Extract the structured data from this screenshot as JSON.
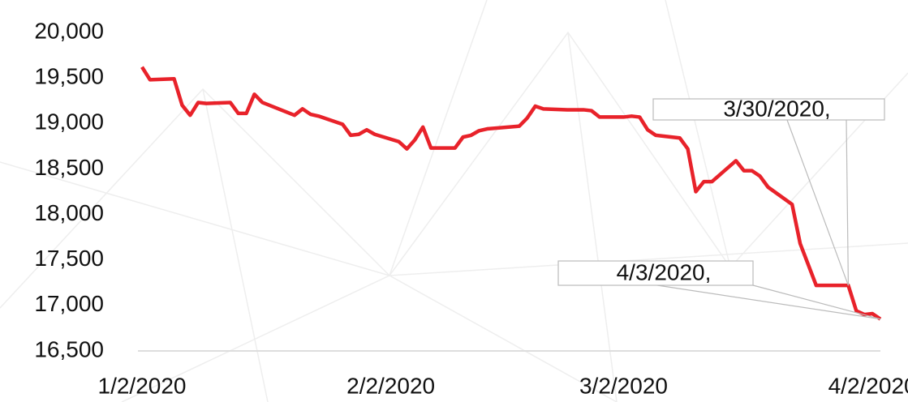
{
  "chart_data": {
    "type": "line",
    "x": [
      "1/2/2020",
      "1/3/2020",
      "1/6/2020",
      "1/7/2020",
      "1/8/2020",
      "1/9/2020",
      "1/10/2020",
      "1/13/2020",
      "1/14/2020",
      "1/15/2020",
      "1/16/2020",
      "1/17/2020",
      "1/21/2020",
      "1/22/2020",
      "1/23/2020",
      "1/24/2020",
      "1/27/2020",
      "1/28/2020",
      "1/29/2020",
      "1/30/2020",
      "1/31/2020",
      "2/3/2020",
      "2/4/2020",
      "2/5/2020",
      "2/6/2020",
      "2/7/2020",
      "2/10/2020",
      "2/11/2020",
      "2/12/2020",
      "2/13/2020",
      "2/14/2020",
      "2/18/2020",
      "2/19/2020",
      "2/20/2020",
      "2/21/2020",
      "2/24/2020",
      "2/25/2020",
      "2/26/2020",
      "2/27/2020",
      "2/28/2020",
      "3/2/2020",
      "3/3/2020",
      "3/4/2020",
      "3/5/2020",
      "3/6/2020",
      "3/9/2020",
      "3/10/2020",
      "3/11/2020",
      "3/12/2020",
      "3/13/2020",
      "3/16/2020",
      "3/17/2020",
      "3/18/2020",
      "3/19/2020",
      "3/20/2020",
      "3/23/2020",
      "3/24/2020",
      "3/25/2020",
      "3/26/2020",
      "3/27/2020",
      "3/30/2020",
      "3/31/2020",
      "4/1/2020",
      "4/2/2020",
      "4/3/2020"
    ],
    "series": [
      {
        "color": "#e8222a",
        "values": [
          19620,
          19480,
          19490,
          19200,
          19090,
          19230,
          19220,
          19230,
          19110,
          19110,
          19320,
          19230,
          19090,
          19160,
          19100,
          19080,
          18990,
          18870,
          18880,
          18930,
          18880,
          18800,
          18720,
          18820,
          18960,
          18730,
          18730,
          18850,
          18870,
          18920,
          18940,
          18970,
          19060,
          19190,
          19160,
          19150,
          19150,
          19150,
          19140,
          19070,
          19070,
          19080,
          19070,
          18930,
          18870,
          18840,
          18720,
          18250,
          18360,
          18360,
          18590,
          18480,
          18480,
          18420,
          18300,
          18110,
          17680,
          17450,
          17220,
          17220,
          17220,
          16940,
          16900,
          16910,
          16850
        ]
      }
    ],
    "xlim": [
      "1/2/2020",
      "4/3/2020"
    ],
    "xticks": [
      "1/2/2020",
      "2/2/2020",
      "3/2/2020",
      "4/2/2020"
    ],
    "ylim": [
      16500,
      20000
    ],
    "yticks": [
      {
        "value": 16500,
        "label": "16,500"
      },
      {
        "value": 17000,
        "label": "17,000"
      },
      {
        "value": 17500,
        "label": "17,500"
      },
      {
        "value": 18000,
        "label": "18,000"
      },
      {
        "value": 18500,
        "label": "18,500"
      },
      {
        "value": 19000,
        "label": "19,000"
      },
      {
        "value": 19500,
        "label": "19,500"
      },
      {
        "value": 20000,
        "label": "20,000"
      }
    ],
    "annotations": [
      {
        "text": "3/30/2020,",
        "x": "3/30/2020"
      },
      {
        "text": "4/3/2020,",
        "x": "4/3/2020"
      }
    ]
  }
}
